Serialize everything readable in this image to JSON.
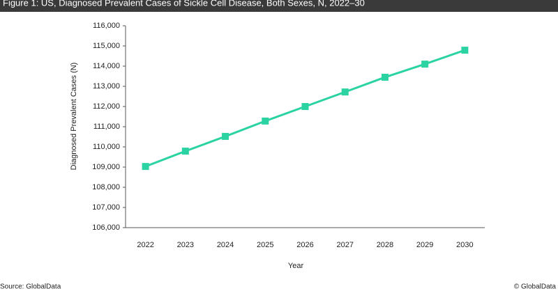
{
  "chart_data": {
    "type": "line",
    "title": "Figure 1: US, Diagnosed Prevalent Cases of Sickle Cell Disease, Both Sexes, N, 2022–30",
    "x_label": "Year",
    "y_label": "Diagnosed Prevalent Cases (N)",
    "categories": [
      "2022",
      "2023",
      "2024",
      "2025",
      "2026",
      "2027",
      "2028",
      "2029",
      "2030"
    ],
    "values": [
      109030,
      109790,
      110520,
      111280,
      112000,
      112720,
      113450,
      114100,
      114790
    ],
    "color": "#2bd3a2",
    "ylim": [
      106000,
      116000
    ],
    "yticks": [
      {
        "value": 106000,
        "label": "106,000"
      },
      {
        "value": 107000,
        "label": "107,000"
      },
      {
        "value": 108000,
        "label": "108,000"
      },
      {
        "value": 109000,
        "label": "109,000"
      },
      {
        "value": 110000,
        "label": "110,000"
      },
      {
        "value": 111000,
        "label": "111,000"
      },
      {
        "value": 112000,
        "label": "112,000"
      },
      {
        "value": 113000,
        "label": "113,000"
      },
      {
        "value": 114000,
        "label": "114,000"
      },
      {
        "value": 115000,
        "label": "115,000"
      },
      {
        "value": 116000,
        "label": "116,000"
      }
    ],
    "grid": false
  },
  "footer": {
    "source": "Source: GlobalData",
    "copyright": "© GlobalData"
  }
}
